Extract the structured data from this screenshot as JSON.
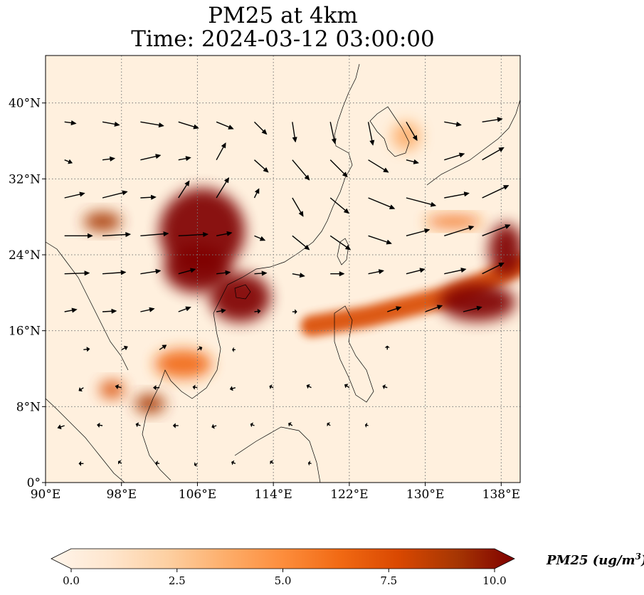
{
  "title": {
    "line1": "PM25 at 4km",
    "line2": "Time: 2024-03-12 03:00:00"
  },
  "map": {
    "variable": "PM25",
    "extent": {
      "lon": [
        90,
        140
      ],
      "lat": [
        0,
        45
      ]
    },
    "lon_ticks": [
      {
        "value": 90,
        "label": "90°E"
      },
      {
        "value": 98,
        "label": "98°E"
      },
      {
        "value": 106,
        "label": "106°E"
      },
      {
        "value": 114,
        "label": "114°E"
      },
      {
        "value": 122,
        "label": "122°E"
      },
      {
        "value": 130,
        "label": "130°E"
      },
      {
        "value": 138,
        "label": "138°E"
      }
    ],
    "lat_ticks": [
      {
        "value": 0,
        "label": "0°"
      },
      {
        "value": 8,
        "label": "8°N"
      },
      {
        "value": 16,
        "label": "16°N"
      },
      {
        "value": 24,
        "label": "24°N"
      },
      {
        "value": 32,
        "label": "32°N"
      },
      {
        "value": 40,
        "label": "40°N"
      }
    ],
    "gridlines": true,
    "plumes": [
      {
        "lon": 106.5,
        "lat": 26.5,
        "rlon": 4.5,
        "rlat": 4.5,
        "value": 10
      },
      {
        "lon": 110.5,
        "lat": 19.5,
        "rlon": 3.2,
        "rlat": 2.6,
        "value": 10
      },
      {
        "lon": 106.0,
        "lat": 22.5,
        "rlon": 3.5,
        "rlat": 2.5,
        "value": 10
      },
      {
        "lon": 96.0,
        "lat": 27.5,
        "rlon": 2.0,
        "rlat": 1.0,
        "value": 9
      },
      {
        "lon": 101.0,
        "lat": 8.3,
        "rlon": 1.6,
        "rlat": 1.0,
        "value": 9
      },
      {
        "lon": 97.0,
        "lat": 9.8,
        "rlon": 1.3,
        "rlat": 0.9,
        "value": 8
      },
      {
        "lon": 104.5,
        "lat": 12.5,
        "rlon": 3.0,
        "rlat": 1.5,
        "value": 6
      },
      {
        "lon": 135.5,
        "lat": 19.0,
        "rlon": 4.0,
        "rlat": 2.0,
        "value": 10
      },
      {
        "lon": 138.5,
        "lat": 24.5,
        "rlon": 1.8,
        "rlat": 2.8,
        "value": 10
      },
      {
        "lon": 128.0,
        "lat": 36.5,
        "rlon": 1.5,
        "rlat": 1.5,
        "value": 4
      },
      {
        "lon": 133.0,
        "lat": 27.5,
        "rlon": 3.0,
        "rlat": 0.6,
        "value": 6
      }
    ],
    "plume_band": [
      [
        118,
        16.5
      ],
      [
        124,
        17.5
      ],
      [
        128,
        18.5
      ],
      [
        132,
        19.5
      ],
      [
        136,
        21
      ],
      [
        140,
        23
      ]
    ],
    "wind_vectors": [
      {
        "lon": 92,
        "lat": 38,
        "u": 1.5,
        "v": -0.2
      },
      {
        "lon": 96,
        "lat": 38,
        "u": 2.2,
        "v": -0.4
      },
      {
        "lon": 100,
        "lat": 38,
        "u": 3.0,
        "v": -0.5
      },
      {
        "lon": 104,
        "lat": 38,
        "u": 2.6,
        "v": -0.8
      },
      {
        "lon": 108,
        "lat": 38,
        "u": 2.2,
        "v": -0.9
      },
      {
        "lon": 112,
        "lat": 38,
        "u": 1.6,
        "v": -1.6
      },
      {
        "lon": 116,
        "lat": 38,
        "u": 0.4,
        "v": -2.6
      },
      {
        "lon": 120,
        "lat": 38,
        "u": 0.6,
        "v": -2.8
      },
      {
        "lon": 124,
        "lat": 38,
        "u": 0.6,
        "v": -3.0
      },
      {
        "lon": 128,
        "lat": 38,
        "u": 1.4,
        "v": -2.4
      },
      {
        "lon": 132,
        "lat": 38,
        "u": 2.2,
        "v": -0.4
      },
      {
        "lon": 136,
        "lat": 38,
        "u": 2.6,
        "v": 0.4
      },
      {
        "lon": 92,
        "lat": 34,
        "u": 1.0,
        "v": -0.4
      },
      {
        "lon": 96,
        "lat": 34,
        "u": 1.6,
        "v": 0.2
      },
      {
        "lon": 100,
        "lat": 34,
        "u": 2.6,
        "v": 0.6
      },
      {
        "lon": 104,
        "lat": 34,
        "u": 1.6,
        "v": 0.3
      },
      {
        "lon": 108,
        "lat": 34,
        "u": 1.2,
        "v": 2.2
      },
      {
        "lon": 112,
        "lat": 34,
        "u": 1.8,
        "v": -1.6
      },
      {
        "lon": 116,
        "lat": 34,
        "u": 2.2,
        "v": -2.6
      },
      {
        "lon": 120,
        "lat": 34,
        "u": 2.2,
        "v": -2.2
      },
      {
        "lon": 124,
        "lat": 34,
        "u": 2.6,
        "v": -1.6
      },
      {
        "lon": 128,
        "lat": 34,
        "u": 1.6,
        "v": -0.4
      },
      {
        "lon": 132,
        "lat": 34,
        "u": 2.6,
        "v": 0.8
      },
      {
        "lon": 136,
        "lat": 34,
        "u": 2.8,
        "v": 1.6
      },
      {
        "lon": 92,
        "lat": 30,
        "u": 2.6,
        "v": 0.6
      },
      {
        "lon": 96,
        "lat": 30,
        "u": 3.2,
        "v": 0.8
      },
      {
        "lon": 100,
        "lat": 30,
        "u": 2.0,
        "v": 0.1
      },
      {
        "lon": 104,
        "lat": 30,
        "u": 1.4,
        "v": 2.2
      },
      {
        "lon": 108,
        "lat": 30,
        "u": 1.6,
        "v": 2.6
      },
      {
        "lon": 112,
        "lat": 30,
        "u": 0.6,
        "v": 1.2
      },
      {
        "lon": 116,
        "lat": 30,
        "u": 1.4,
        "v": -2.4
      },
      {
        "lon": 120,
        "lat": 30,
        "u": 2.4,
        "v": -2.0
      },
      {
        "lon": 124,
        "lat": 30,
        "u": 3.4,
        "v": -1.4
      },
      {
        "lon": 128,
        "lat": 30,
        "u": 3.8,
        "v": -1.0
      },
      {
        "lon": 132,
        "lat": 30,
        "u": 3.2,
        "v": 0.6
      },
      {
        "lon": 136,
        "lat": 30,
        "u": 3.4,
        "v": 1.6
      },
      {
        "lon": 92,
        "lat": 26,
        "u": 3.6,
        "v": 0.0
      },
      {
        "lon": 96,
        "lat": 26,
        "u": 3.6,
        "v": 0.2
      },
      {
        "lon": 100,
        "lat": 26,
        "u": 3.6,
        "v": 0.3
      },
      {
        "lon": 104,
        "lat": 26,
        "u": 3.8,
        "v": 0.2
      },
      {
        "lon": 108,
        "lat": 26,
        "u": 2.0,
        "v": 0.4
      },
      {
        "lon": 112,
        "lat": 26,
        "u": 1.4,
        "v": -0.6
      },
      {
        "lon": 116,
        "lat": 26,
        "u": 2.2,
        "v": -1.8
      },
      {
        "lon": 120,
        "lat": 26,
        "u": 2.6,
        "v": -1.8
      },
      {
        "lon": 124,
        "lat": 26,
        "u": 3.0,
        "v": -1.0
      },
      {
        "lon": 128,
        "lat": 26,
        "u": 3.0,
        "v": 0.8
      },
      {
        "lon": 132,
        "lat": 26,
        "u": 3.8,
        "v": 1.2
      },
      {
        "lon": 136,
        "lat": 26,
        "u": 3.6,
        "v": 1.4
      },
      {
        "lon": 92,
        "lat": 22,
        "u": 3.2,
        "v": 0.1
      },
      {
        "lon": 96,
        "lat": 22,
        "u": 3.0,
        "v": 0.2
      },
      {
        "lon": 100,
        "lat": 22,
        "u": 2.6,
        "v": 0.4
      },
      {
        "lon": 104,
        "lat": 22,
        "u": 2.2,
        "v": 0.6
      },
      {
        "lon": 108,
        "lat": 22,
        "u": 1.8,
        "v": 0.2
      },
      {
        "lon": 112,
        "lat": 22,
        "u": 1.6,
        "v": 0.1
      },
      {
        "lon": 116,
        "lat": 22,
        "u": 1.6,
        "v": -0.3
      },
      {
        "lon": 120,
        "lat": 22,
        "u": 1.8,
        "v": 0.0
      },
      {
        "lon": 124,
        "lat": 22,
        "u": 2.0,
        "v": 0.4
      },
      {
        "lon": 128,
        "lat": 22,
        "u": 2.4,
        "v": 0.6
      },
      {
        "lon": 132,
        "lat": 22,
        "u": 2.8,
        "v": 0.6
      },
      {
        "lon": 136,
        "lat": 22,
        "u": 2.8,
        "v": 1.4
      },
      {
        "lon": 92,
        "lat": 18,
        "u": 1.6,
        "v": 0.3
      },
      {
        "lon": 96,
        "lat": 18,
        "u": 1.8,
        "v": 0.1
      },
      {
        "lon": 100,
        "lat": 18,
        "u": 1.8,
        "v": 0.4
      },
      {
        "lon": 104,
        "lat": 18,
        "u": 1.6,
        "v": 0.6
      },
      {
        "lon": 108,
        "lat": 18,
        "u": 1.2,
        "v": 0.2
      },
      {
        "lon": 112,
        "lat": 18,
        "u": 0.8,
        "v": 0.1
      },
      {
        "lon": 116,
        "lat": 18,
        "u": 0.6,
        "v": 0.0
      },
      {
        "lon": 126,
        "lat": 18,
        "u": 1.8,
        "v": 0.6
      },
      {
        "lon": 130,
        "lat": 18,
        "u": 2.2,
        "v": 0.8
      },
      {
        "lon": 134,
        "lat": 18,
        "u": 2.4,
        "v": 0.6
      },
      {
        "lon": 94,
        "lat": 14,
        "u": 0.8,
        "v": 0.1
      },
      {
        "lon": 98,
        "lat": 14,
        "u": 0.8,
        "v": 0.4
      },
      {
        "lon": 102,
        "lat": 14,
        "u": 0.9,
        "v": 0.6
      },
      {
        "lon": 106,
        "lat": 14,
        "u": 0.6,
        "v": 0.3
      },
      {
        "lon": 110,
        "lat": 14,
        "u": -0.4,
        "v": 0.0
      },
      {
        "lon": 126,
        "lat": 14,
        "u": 0.0,
        "v": 0.5
      },
      {
        "lon": 94,
        "lat": 10,
        "u": -0.6,
        "v": -0.4
      },
      {
        "lon": 98,
        "lat": 10,
        "u": -0.8,
        "v": 0.2
      },
      {
        "lon": 102,
        "lat": 10,
        "u": -0.8,
        "v": 0.0
      },
      {
        "lon": 106,
        "lat": 10,
        "u": -0.6,
        "v": 0.1
      },
      {
        "lon": 110,
        "lat": 10,
        "u": -0.7,
        "v": -0.2
      },
      {
        "lon": 114,
        "lat": 10,
        "u": -0.5,
        "v": 0.2
      },
      {
        "lon": 118,
        "lat": 10,
        "u": -0.6,
        "v": 0.3
      },
      {
        "lon": 122,
        "lat": 10,
        "u": -0.6,
        "v": 0.4
      },
      {
        "lon": 126,
        "lat": 10,
        "u": -0.6,
        "v": 0.2
      },
      {
        "lon": 92,
        "lat": 6,
        "u": -0.9,
        "v": -0.3
      },
      {
        "lon": 96,
        "lat": 6,
        "u": -0.7,
        "v": 0.1
      },
      {
        "lon": 100,
        "lat": 6,
        "u": -0.6,
        "v": 0.2
      },
      {
        "lon": 104,
        "lat": 6,
        "u": -0.7,
        "v": 0.0
      },
      {
        "lon": 108,
        "lat": 6,
        "u": -0.6,
        "v": -0.2
      },
      {
        "lon": 112,
        "lat": 6,
        "u": -0.5,
        "v": 0.2
      },
      {
        "lon": 116,
        "lat": 6,
        "u": -0.5,
        "v": 0.3
      },
      {
        "lon": 120,
        "lat": 6,
        "u": -0.4,
        "v": 0.3
      },
      {
        "lon": 124,
        "lat": 6,
        "u": -0.4,
        "v": 0.1
      },
      {
        "lon": 94,
        "lat": 2,
        "u": -0.6,
        "v": 0.0
      },
      {
        "lon": 98,
        "lat": 2,
        "u": -0.4,
        "v": 0.3
      },
      {
        "lon": 102,
        "lat": 2,
        "u": -0.5,
        "v": 0.1
      },
      {
        "lon": 106,
        "lat": 2,
        "u": -0.4,
        "v": -0.2
      },
      {
        "lon": 110,
        "lat": 2,
        "u": -0.5,
        "v": 0.2
      },
      {
        "lon": 114,
        "lat": 2,
        "u": -0.4,
        "v": 0.3
      },
      {
        "lon": 118,
        "lat": 2,
        "u": -0.4,
        "v": 0.1
      }
    ]
  },
  "colorbar": {
    "vmin": 0,
    "vmax": 10,
    "ticks": [
      "0.0",
      "2.5",
      "5.0",
      "7.5",
      "10.0"
    ],
    "label_main": "PM25 (ug/m",
    "label_sup": "3",
    "label_end": ")",
    "colors": [
      "#fff5eb",
      "#fee6ce",
      "#fdd0a2",
      "#fdae6b",
      "#fd8d3c",
      "#f16913",
      "#d94801",
      "#a63603",
      "#7f0000"
    ]
  }
}
